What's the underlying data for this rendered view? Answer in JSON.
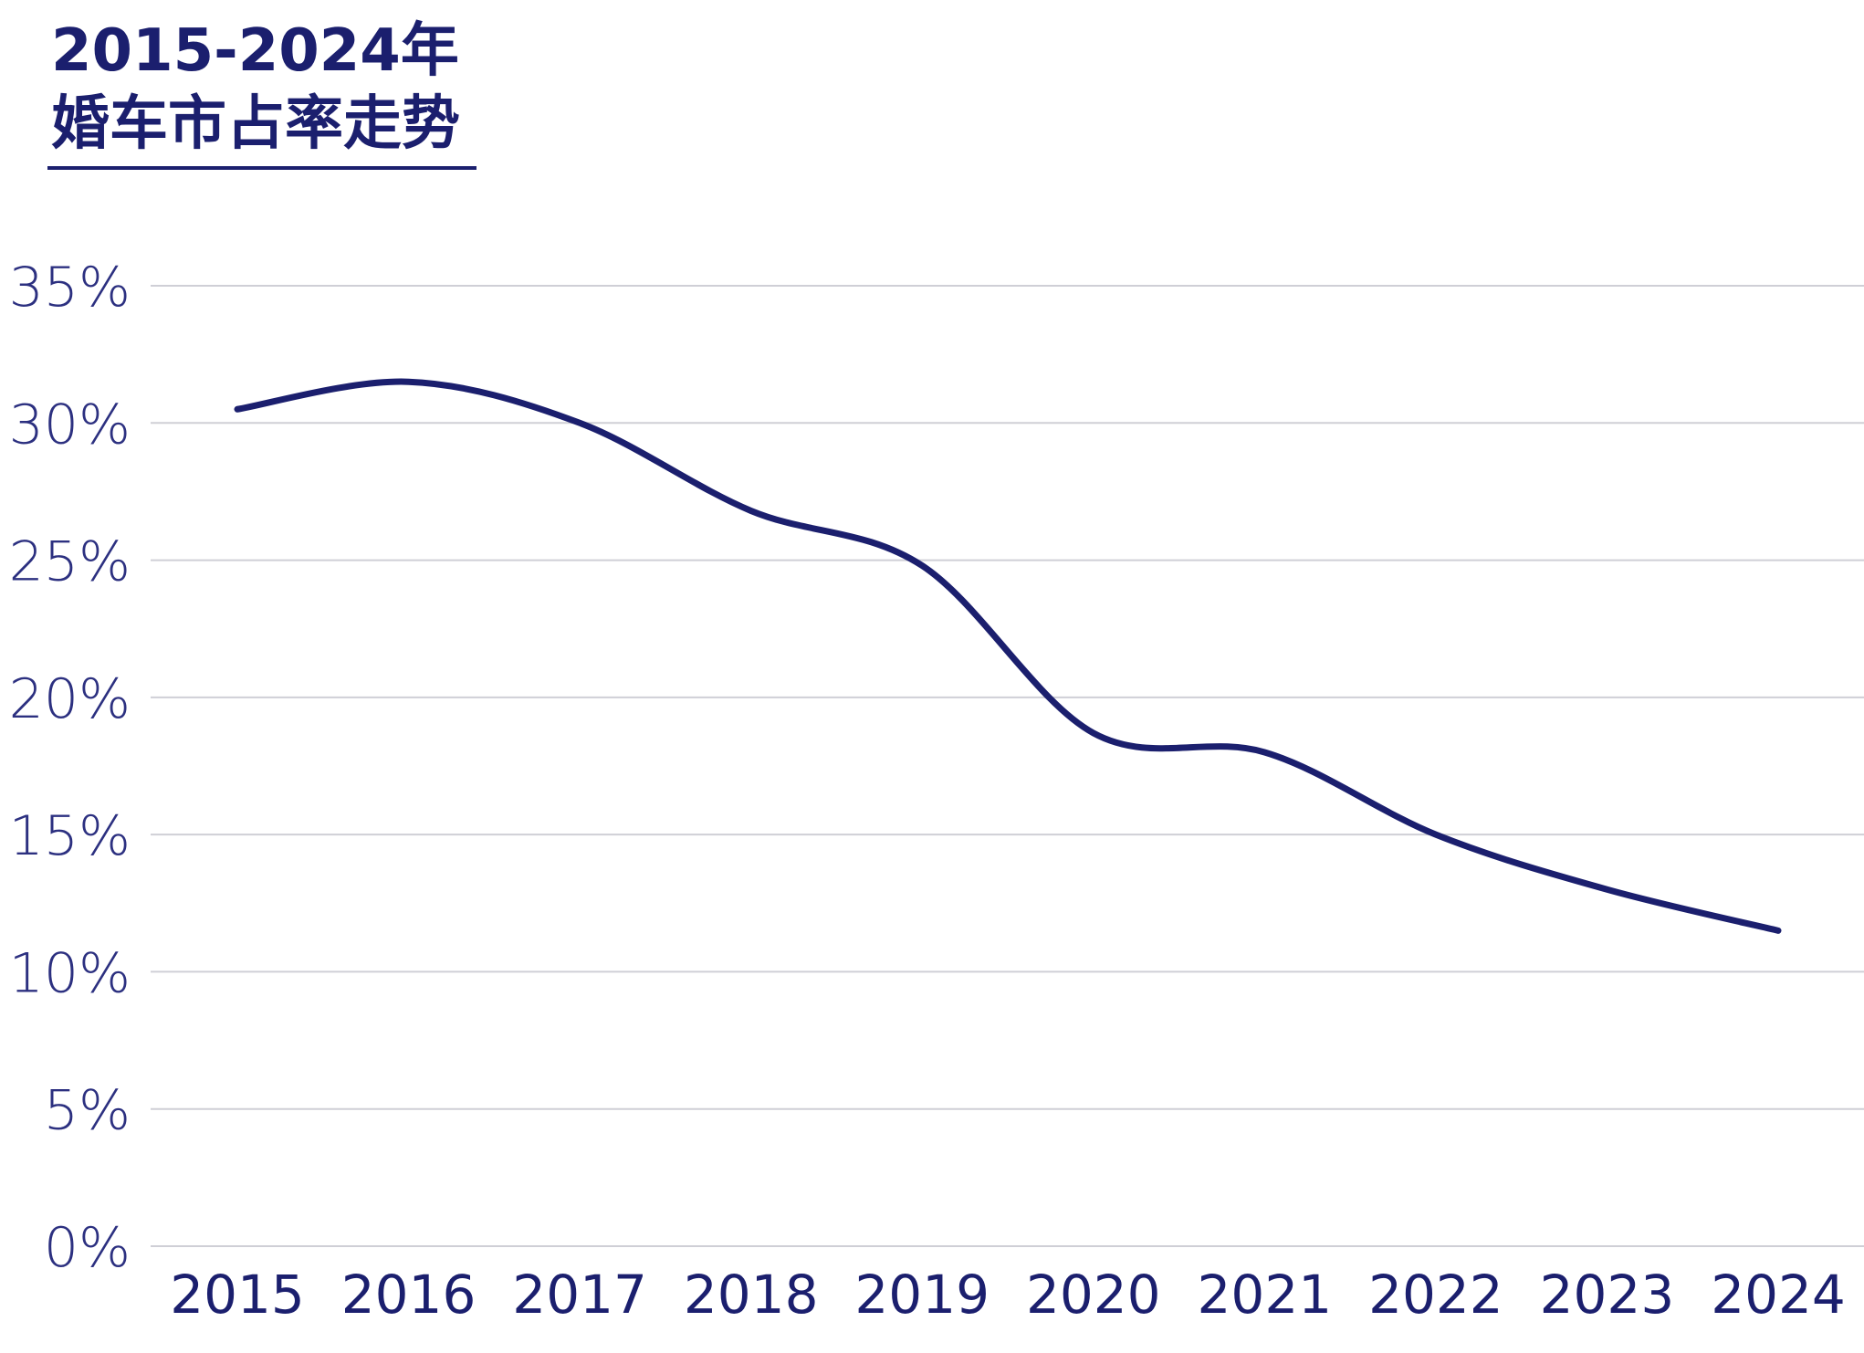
{
  "chart_data": {
    "type": "line",
    "title": "2015-2024年",
    "subtitle": "婚车市占率走势",
    "xlabel": "",
    "ylabel": "",
    "x": [
      "2015",
      "2016",
      "2017",
      "2018",
      "2019",
      "2020",
      "2021",
      "2022",
      "2023",
      "2024"
    ],
    "y_tick_labels": [
      "0%",
      "5%",
      "10%",
      "15%",
      "20%",
      "25%",
      "30%",
      "35%"
    ],
    "y_ticks": [
      0,
      5,
      10,
      15,
      20,
      25,
      30,
      35
    ],
    "ylim": [
      0,
      35
    ],
    "grid": true,
    "legend": "none",
    "series": [
      {
        "values": [
          30.5,
          31.5,
          30.0,
          26.8,
          24.8,
          18.7,
          18.0,
          15.0,
          13.0,
          11.5
        ],
        "color": "#1b1f6e"
      }
    ],
    "colors": {
      "line": "#1b1f6e",
      "title": "#1b1f6e",
      "grid": "#cfcfd6",
      "axis_text": "#2c3080"
    }
  }
}
